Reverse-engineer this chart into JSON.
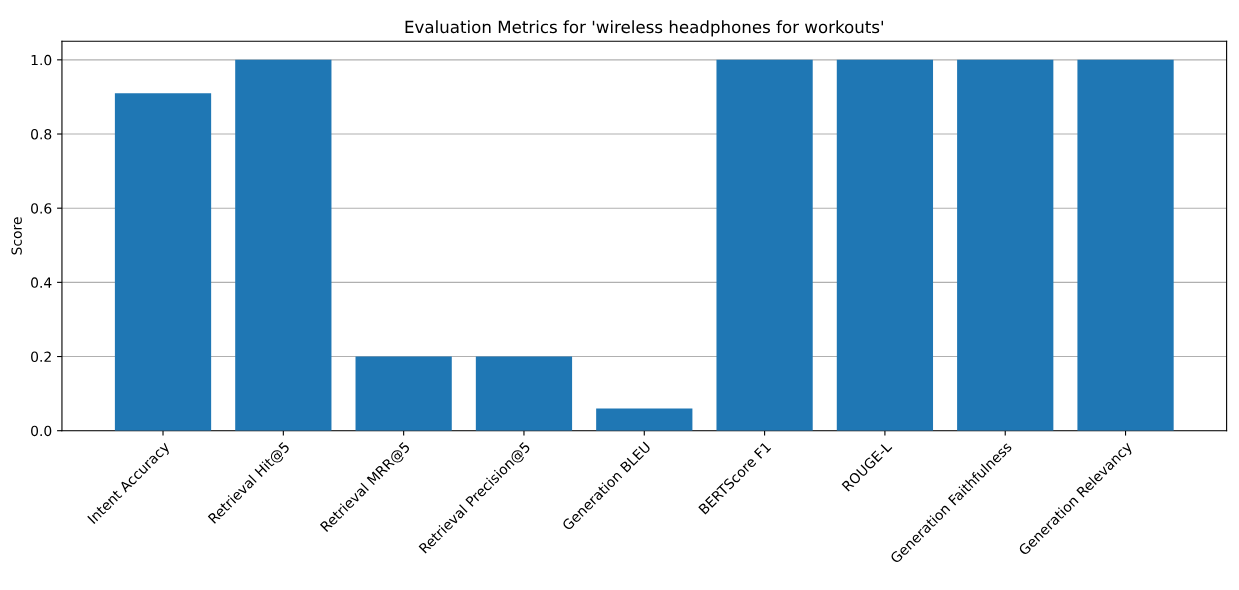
{
  "chart_data": {
    "type": "bar",
    "title": "Evaluation Metrics for 'wireless headphones for workouts'",
    "ylabel": "Score",
    "categories": [
      "Intent Accuracy",
      "Retrieval Hit@5",
      "Retrieval MRR@5",
      "Retrieval Precision@5",
      "Generation BLEU",
      "BERTScore F1",
      "ROUGE-L",
      "Generation Faithfulness",
      "Generation Relevancy"
    ],
    "values": [
      0.91,
      1.0,
      0.2,
      0.2,
      0.06,
      1.0,
      1.0,
      1.0,
      1.0
    ],
    "color": "#1f77b4",
    "ylim": [
      0,
      1.05
    ],
    "yticks": [
      {
        "value": 0,
        "label": "0.0"
      },
      {
        "value": 0.2,
        "label": "0.2"
      },
      {
        "value": 0.4,
        "label": "0.4"
      },
      {
        "value": 0.6,
        "label": "0.6"
      },
      {
        "value": 0.8,
        "label": "0.8"
      },
      {
        "value": 1.0,
        "label": "1.0"
      }
    ],
    "grid": "y"
  }
}
